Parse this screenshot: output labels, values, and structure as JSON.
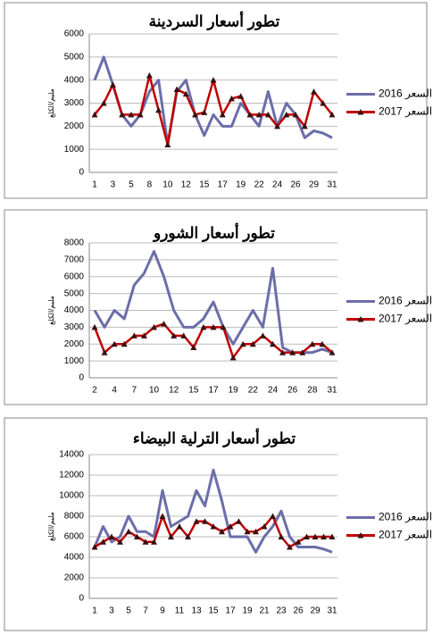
{
  "chart_data": [
    {
      "type": "line",
      "title": "تطور أسعار السردينة",
      "y_label": "مليم/الكلغ",
      "categories": [
        "1",
        null,
        "3",
        null,
        "5",
        null,
        "8",
        null,
        "10",
        null,
        "12",
        null,
        "15",
        null,
        "17",
        null,
        "19",
        null,
        "22",
        null,
        "24",
        null,
        "26",
        null,
        "29",
        null,
        "31"
      ],
      "series": [
        {
          "name": "2016 السعر",
          "color": "#6b6ea8",
          "values": [
            4000,
            5000,
            3800,
            2500,
            2000,
            2500,
            3500,
            4000,
            1200,
            3500,
            4000,
            2500,
            1600,
            2500,
            2000,
            2000,
            3000,
            2500,
            2000,
            3500,
            2000,
            3000,
            2500,
            1500,
            1800,
            1700,
            1500
          ]
        },
        {
          "name": "2017 السعر",
          "color": "#c00000",
          "marker": "triangle",
          "values": [
            2500,
            3000,
            3800,
            2500,
            2500,
            2500,
            4200,
            2700,
            1200,
            3600,
            3400,
            2500,
            2600,
            4000,
            2500,
            3200,
            3300,
            2500,
            2500,
            2500,
            2000,
            2500,
            2500,
            2000,
            3500,
            3000,
            2500
          ]
        }
      ],
      "ylim": [
        0,
        6000
      ],
      "yticks": [
        0,
        1000,
        2000,
        3000,
        4000,
        5000,
        6000
      ],
      "grid": true
    },
    {
      "type": "line",
      "title": "تطور أسعار الشورو",
      "y_label": "مليم/الكلغ",
      "categories": [
        "2",
        null,
        "4",
        null,
        "7",
        null,
        "10",
        null,
        "12",
        null,
        "15",
        null,
        "17",
        null,
        "19",
        null,
        "22",
        null,
        "24",
        null,
        "26",
        null,
        "28",
        null,
        "31"
      ],
      "series": [
        {
          "name": "2016 السعر",
          "color": "#6b6ea8",
          "values": [
            4000,
            3000,
            4000,
            3500,
            5500,
            6200,
            7500,
            6000,
            4000,
            3000,
            3000,
            3500,
            4500,
            3000,
            2000,
            3000,
            4000,
            3000,
            6500,
            1800,
            1500,
            1500,
            1500,
            1700,
            1500
          ]
        },
        {
          "name": "2017 السعر",
          "color": "#c00000",
          "marker": "triangle",
          "values": [
            3000,
            1500,
            2000,
            2000,
            2500,
            2500,
            3000,
            3200,
            2500,
            2500,
            1800,
            3000,
            3000,
            3000,
            1200,
            2000,
            2000,
            2500,
            2000,
            1500,
            1500,
            1500,
            2000,
            2000,
            1500
          ]
        }
      ],
      "ylim": [
        0,
        8000
      ],
      "yticks": [
        0,
        1000,
        2000,
        3000,
        4000,
        5000,
        6000,
        7000,
        8000
      ],
      "grid": true
    },
    {
      "type": "line",
      "title": "تطور أسعار الترلية البيضاء",
      "y_label": "مليم/الكلغ",
      "categories": [
        "1",
        null,
        "3",
        null,
        "5",
        null,
        "7",
        null,
        "9",
        null,
        "11",
        null,
        "13",
        null,
        "15",
        null,
        "17",
        null,
        "19",
        null,
        "21",
        null,
        "23",
        null,
        "26",
        null,
        "29",
        null,
        "31"
      ],
      "series": [
        {
          "name": "2016 السعر",
          "color": "#6b6ea8",
          "values": [
            5000,
            7000,
            5500,
            6000,
            8000,
            6500,
            6500,
            6000,
            10500,
            7000,
            7500,
            8000,
            10500,
            9000,
            12500,
            9500,
            6000,
            6000,
            6000,
            4500,
            6000,
            7000,
            8500,
            6000,
            5000,
            5000,
            5000,
            4800,
            4500
          ]
        },
        {
          "name": "2017 السعر",
          "color": "#c00000",
          "marker": "triangle",
          "values": [
            5000,
            5500,
            6000,
            5500,
            6500,
            6000,
            5500,
            5500,
            8000,
            6000,
            7000,
            6000,
            7500,
            7500,
            7000,
            6500,
            7000,
            7500,
            6500,
            6500,
            7000,
            8000,
            6000,
            5000,
            5500,
            6000,
            6000,
            6000,
            6000
          ]
        }
      ],
      "ylim": [
        0,
        14000
      ],
      "yticks": [
        0,
        2000,
        4000,
        6000,
        8000,
        10000,
        12000,
        14000
      ],
      "grid": true
    }
  ]
}
